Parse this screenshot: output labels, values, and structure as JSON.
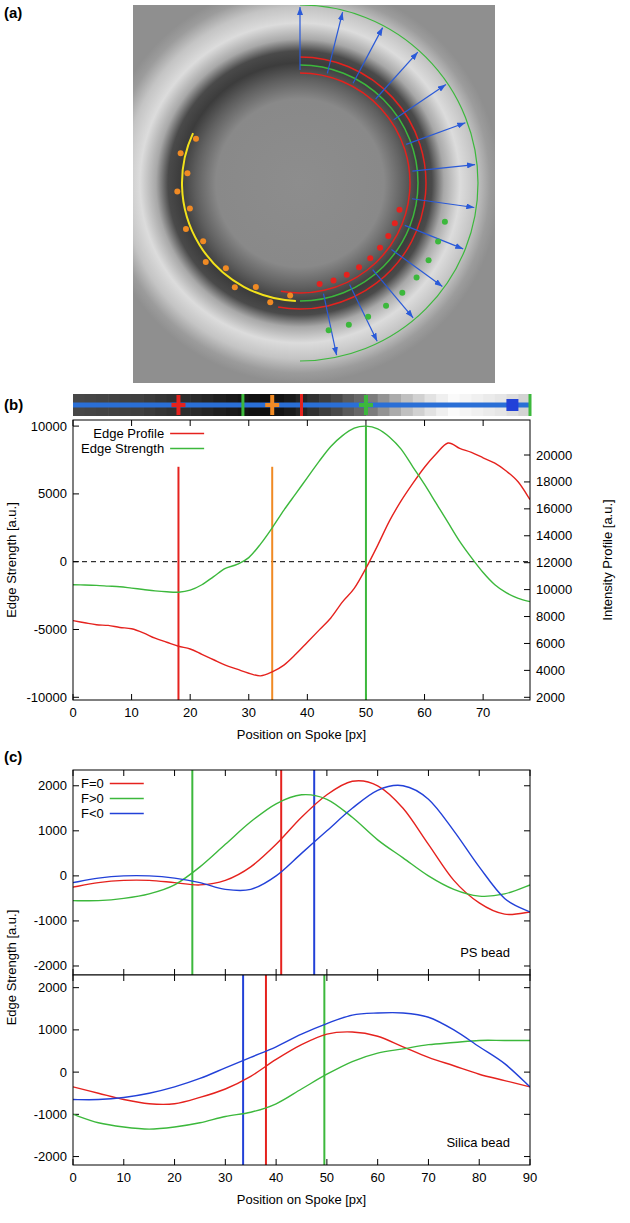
{
  "figure": {
    "panel_labels": [
      "(a)",
      "(b)",
      "(c)"
    ]
  },
  "chart_data": [
    {
      "type": "line",
      "x": [
        0,
        2,
        4,
        6,
        8,
        10,
        12,
        14,
        16,
        18,
        20,
        22,
        24,
        26,
        28,
        30,
        32,
        34,
        36,
        38,
        40,
        42,
        44,
        46,
        48,
        50,
        52,
        54,
        56,
        58,
        60,
        62,
        64,
        66,
        68,
        70,
        72,
        74,
        76,
        78
      ],
      "xlim": [
        0,
        78
      ],
      "xticks": [
        0,
        10,
        20,
        30,
        40,
        50,
        60,
        70
      ],
      "ylim": [
        -10200,
        10450
      ],
      "yticks": [
        -10000,
        -5000,
        0,
        5000,
        10000
      ],
      "y2lim": [
        1800,
        22600
      ],
      "y2ticks": [
        2000,
        4000,
        6000,
        8000,
        10000,
        12000,
        14000,
        16000,
        18000,
        20000
      ],
      "x_label": "Position on Spoke [px]",
      "y_label": "Edge Strength [a.u.]",
      "y2_label": "Intensity Profile [a.u.]",
      "legend": "upper left",
      "reference_line": 0,
      "series": [
        {
          "name": "Edge Profile",
          "color": "#e5221e",
          "axis": "y2",
          "values": [
            7700,
            7540,
            7390,
            7340,
            7190,
            7090,
            6790,
            6390,
            6090,
            5790,
            5590,
            5190,
            4790,
            4390,
            4090,
            3790,
            3590,
            3890,
            4390,
            5190,
            6090,
            6990,
            7890,
            9090,
            10090,
            11590,
            13290,
            15090,
            16590,
            17890,
            19090,
            20090,
            20890,
            20490,
            20190,
            19790,
            19390,
            18790,
            17990,
            16690
          ]
        },
        {
          "name": "Edge Strength",
          "color": "#3cb83c",
          "values": [
            -1700,
            -1720,
            -1750,
            -1800,
            -1850,
            -1950,
            -2050,
            -2150,
            -2220,
            -2250,
            -2100,
            -1700,
            -1100,
            -500,
            -200,
            300,
            1300,
            2500,
            3800,
            5000,
            6200,
            7400,
            8500,
            9300,
            9850,
            10000,
            9800,
            9200,
            8300,
            7000,
            5700,
            4300,
            2900,
            1500,
            300,
            -800,
            -1700,
            -2300,
            -2700,
            -2950
          ]
        }
      ],
      "vlines": [
        {
          "x": 18,
          "top": 7000,
          "color": "#e5221e"
        },
        {
          "x": 34,
          "top": 7000,
          "color": "#f08a24"
        },
        {
          "x": 50,
          "top": 10000,
          "color": "#3cb83c"
        }
      ],
      "strip_markers": [
        {
          "x": 18,
          "color": "#e5221e",
          "marker": "cross"
        },
        {
          "x": 29,
          "color": "#3cb83c",
          "marker": "tick"
        },
        {
          "x": 34,
          "color": "#f08a24",
          "marker": "cross"
        },
        {
          "x": 39,
          "color": "#e5221e",
          "marker": "tick"
        },
        {
          "x": 50,
          "color": "#3cb83c",
          "marker": "cross"
        },
        {
          "x": 75,
          "color": "#2241d8",
          "marker": "square"
        },
        {
          "x": 78,
          "color": "#3cb83c",
          "marker": "tick"
        }
      ]
    },
    {
      "type": "line",
      "x": [
        0,
        5,
        10,
        15,
        20,
        25,
        30,
        35,
        40,
        45,
        50,
        55,
        60,
        65,
        70,
        75,
        80,
        85,
        90
      ],
      "xlim": [
        0,
        90
      ],
      "xticks": [
        0,
        10,
        20,
        30,
        40,
        50,
        60,
        70,
        80,
        90
      ],
      "ylim": [
        -2200,
        2350
      ],
      "yticks": [
        -2000,
        -1000,
        0,
        1000,
        2000
      ],
      "tick_labels": "y",
      "y_label": "Edge Strength [a.u.]",
      "legend": "upper left",
      "annotation": "PS bead",
      "series": [
        {
          "name": "F=0",
          "color": "#e5221e",
          "values": [
            -250,
            -150,
            -100,
            -100,
            -150,
            -200,
            -100,
            200,
            700,
            1300,
            1800,
            2100,
            2000,
            1500,
            700,
            -100,
            -600,
            -850,
            -800
          ]
        },
        {
          "name": "F>0",
          "color": "#3cb83c",
          "values": [
            -550,
            -550,
            -500,
            -400,
            -200,
            200,
            700,
            1200,
            1600,
            1800,
            1700,
            1300,
            800,
            400,
            0,
            -300,
            -450,
            -400,
            -200
          ]
        },
        {
          "name": "F<0",
          "color": "#2241d8",
          "values": [
            -150,
            -50,
            0,
            0,
            -50,
            -150,
            -300,
            -300,
            0,
            500,
            1000,
            1500,
            1900,
            2000,
            1700,
            1000,
            200,
            -500,
            -800
          ]
        }
      ],
      "vlines": [
        {
          "x": 23.5,
          "color": "#3cb83c"
        },
        {
          "x": 41,
          "color": "#e5221e"
        },
        {
          "x": 47.5,
          "color": "#2241d8"
        }
      ]
    },
    {
      "type": "line",
      "x": [
        0,
        5,
        10,
        15,
        20,
        25,
        30,
        35,
        40,
        45,
        50,
        55,
        60,
        65,
        70,
        75,
        80,
        85,
        90
      ],
      "xlim": [
        0,
        90
      ],
      "xticks": [
        0,
        10,
        20,
        30,
        40,
        50,
        60,
        70,
        80,
        90
      ],
      "ylim": [
        -2200,
        2300
      ],
      "yticks": [
        -2000,
        -1000,
        0,
        1000,
        2000
      ],
      "x_label": "Position on Spoke [px]",
      "annotation": "Silica bead",
      "series": [
        {
          "color": "#e5221e",
          "values": [
            -350,
            -500,
            -650,
            -750,
            -750,
            -600,
            -400,
            -100,
            300,
            650,
            900,
            950,
            850,
            600,
            350,
            150,
            -50,
            -200,
            -350
          ]
        },
        {
          "color": "#3cb83c",
          "values": [
            -1000,
            -1200,
            -1300,
            -1350,
            -1300,
            -1200,
            -1050,
            -950,
            -750,
            -400,
            -50,
            250,
            450,
            550,
            650,
            700,
            750,
            750,
            750
          ]
        },
        {
          "color": "#2241d8",
          "values": [
            -650,
            -650,
            -600,
            -500,
            -350,
            -150,
            100,
            350,
            600,
            900,
            1150,
            1350,
            1400,
            1400,
            1300,
            1000,
            600,
            200,
            -350
          ]
        }
      ],
      "vlines": [
        {
          "x": 33.5,
          "color": "#2241d8"
        },
        {
          "x": 38,
          "color": "#e5221e"
        },
        {
          "x": 49.5,
          "color": "#3cb83c"
        }
      ]
    }
  ]
}
